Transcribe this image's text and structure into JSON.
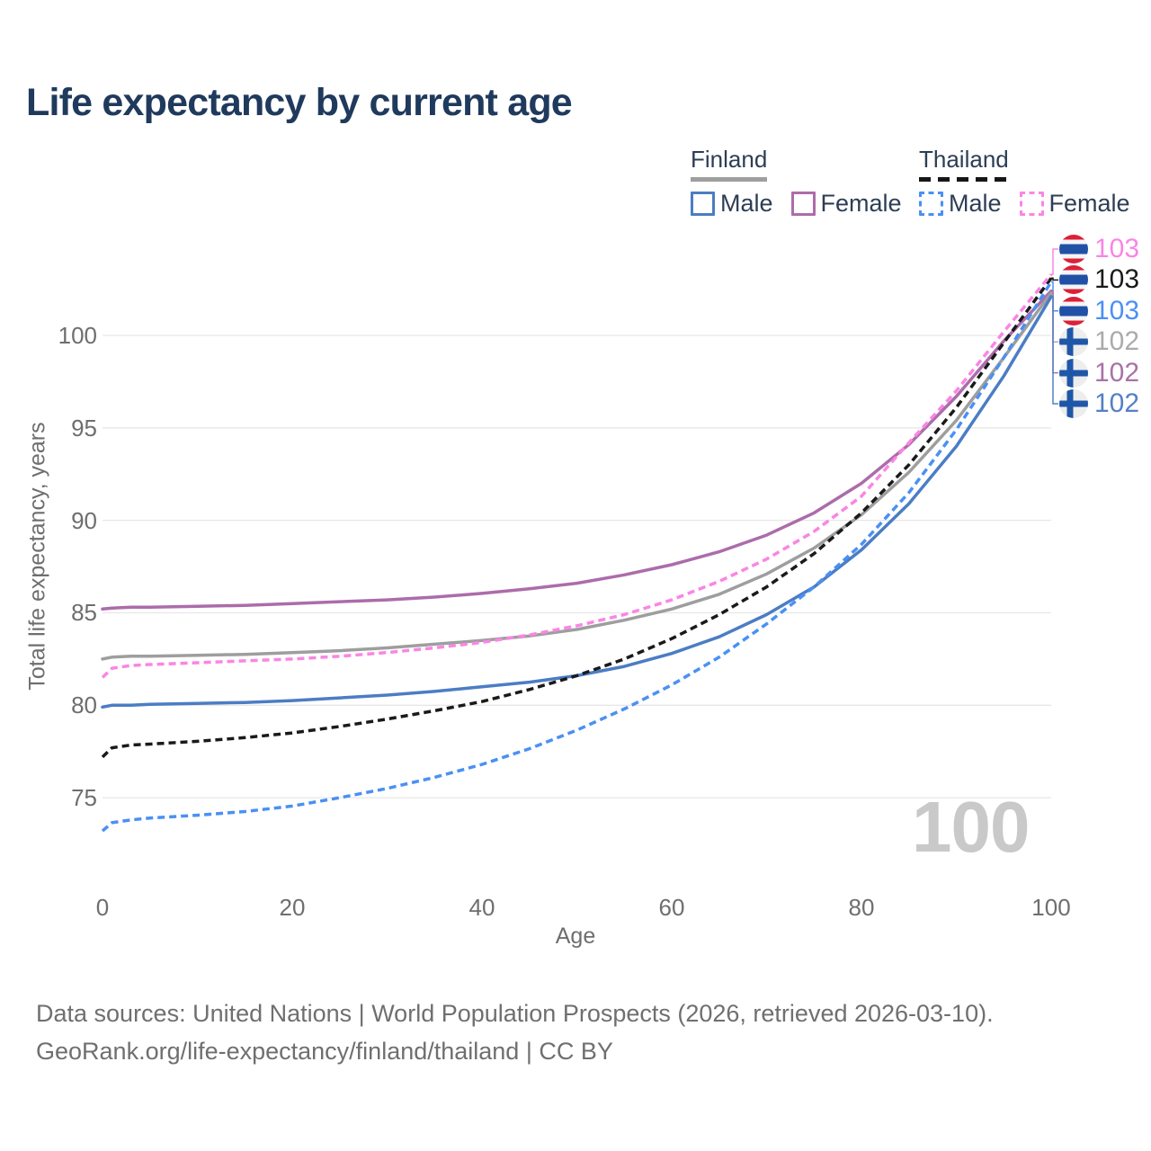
{
  "title": "Life expectancy by current age",
  "watermark": "100",
  "legend": {
    "groups": [
      {
        "country": "Finland",
        "line_style": "solid",
        "line_color": "#9e9e9e",
        "items": [
          {
            "label": "Male",
            "color": "#4b7dc4",
            "dashed": false
          },
          {
            "label": "Female",
            "color": "#ac6cab",
            "dashed": false
          }
        ]
      },
      {
        "country": "Thailand",
        "line_style": "dashed",
        "line_color": "#161616",
        "items": [
          {
            "label": "Male",
            "color": "#4a90f4",
            "dashed": true
          },
          {
            "label": "Female",
            "color": "#fa85e4",
            "dashed": true
          }
        ]
      }
    ]
  },
  "chart_data": {
    "type": "line",
    "title": "Life expectancy by current age",
    "xlabel": "Age",
    "ylabel": "Total life expectancy, years",
    "x_ticks": [
      0,
      20,
      40,
      60,
      80,
      100
    ],
    "y_ticks": [
      75,
      80,
      85,
      90,
      95,
      100
    ],
    "xlim": [
      0,
      100
    ],
    "ylim": [
      73,
      103.5
    ],
    "grid": "horizontal-only",
    "legend_position": "top-right",
    "series": [
      {
        "id": "thailand-female",
        "name": "Thailand Female",
        "country": "Thailand",
        "flag": "thailand",
        "style": "dashed",
        "color": "#fa85e4",
        "label_color": "#fa85e4",
        "end_label": "103",
        "points": [
          [
            0,
            81.5
          ],
          [
            1,
            82.0
          ],
          [
            3,
            82.15
          ],
          [
            5,
            82.2
          ],
          [
            10,
            82.3
          ],
          [
            15,
            82.4
          ],
          [
            20,
            82.5
          ],
          [
            25,
            82.65
          ],
          [
            30,
            82.85
          ],
          [
            35,
            83.1
          ],
          [
            40,
            83.4
          ],
          [
            45,
            83.8
          ],
          [
            50,
            84.3
          ],
          [
            55,
            84.9
          ],
          [
            60,
            85.7
          ],
          [
            65,
            86.7
          ],
          [
            70,
            87.9
          ],
          [
            75,
            89.4
          ],
          [
            80,
            91.3
          ],
          [
            85,
            94.2
          ],
          [
            90,
            97.0
          ],
          [
            95,
            100.2
          ],
          [
            100,
            103.3
          ]
        ]
      },
      {
        "id": "thailand-total",
        "name": "Thailand",
        "country": "Thailand",
        "flag": "thailand",
        "style": "dashed",
        "color": "#1a1a1a",
        "label_color": "#1a1a1a",
        "end_label": "103",
        "points": [
          [
            0,
            77.2
          ],
          [
            1,
            77.7
          ],
          [
            3,
            77.85
          ],
          [
            5,
            77.9
          ],
          [
            10,
            78.05
          ],
          [
            15,
            78.25
          ],
          [
            20,
            78.5
          ],
          [
            25,
            78.85
          ],
          [
            30,
            79.25
          ],
          [
            35,
            79.7
          ],
          [
            40,
            80.2
          ],
          [
            45,
            80.85
          ],
          [
            50,
            81.6
          ],
          [
            55,
            82.5
          ],
          [
            60,
            83.6
          ],
          [
            65,
            84.9
          ],
          [
            70,
            86.4
          ],
          [
            75,
            88.2
          ],
          [
            80,
            90.4
          ],
          [
            85,
            93.0
          ],
          [
            90,
            96.1
          ],
          [
            95,
            99.6
          ],
          [
            100,
            103.1
          ]
        ]
      },
      {
        "id": "thailand-male",
        "name": "Thailand Male",
        "country": "Thailand",
        "flag": "thailand",
        "style": "dashed",
        "color": "#4a90f4",
        "label_color": "#4a90f4",
        "end_label": "103",
        "points": [
          [
            0,
            73.2
          ],
          [
            1,
            73.65
          ],
          [
            3,
            73.8
          ],
          [
            5,
            73.9
          ],
          [
            10,
            74.05
          ],
          [
            15,
            74.25
          ],
          [
            20,
            74.55
          ],
          [
            25,
            75.0
          ],
          [
            30,
            75.5
          ],
          [
            35,
            76.1
          ],
          [
            40,
            76.8
          ],
          [
            45,
            77.65
          ],
          [
            50,
            78.65
          ],
          [
            55,
            79.8
          ],
          [
            60,
            81.1
          ],
          [
            65,
            82.6
          ],
          [
            70,
            84.4
          ],
          [
            75,
            86.4
          ],
          [
            80,
            88.7
          ],
          [
            85,
            91.5
          ],
          [
            90,
            94.9
          ],
          [
            95,
            98.8
          ],
          [
            100,
            102.9
          ]
        ]
      },
      {
        "id": "finland-total",
        "name": "Finland",
        "country": "Finland",
        "flag": "finland",
        "style": "solid",
        "color": "#9e9e9e",
        "label_color": "#ababab",
        "end_label": "102",
        "points": [
          [
            0,
            82.5
          ],
          [
            1,
            82.6
          ],
          [
            3,
            82.65
          ],
          [
            5,
            82.65
          ],
          [
            10,
            82.7
          ],
          [
            15,
            82.75
          ],
          [
            20,
            82.85
          ],
          [
            25,
            82.95
          ],
          [
            30,
            83.1
          ],
          [
            35,
            83.3
          ],
          [
            40,
            83.5
          ],
          [
            45,
            83.75
          ],
          [
            50,
            84.1
          ],
          [
            55,
            84.6
          ],
          [
            60,
            85.2
          ],
          [
            65,
            86.0
          ],
          [
            70,
            87.1
          ],
          [
            75,
            88.5
          ],
          [
            80,
            90.3
          ],
          [
            85,
            92.6
          ],
          [
            90,
            95.4
          ],
          [
            95,
            98.8
          ],
          [
            100,
            102.3
          ]
        ]
      },
      {
        "id": "finland-female",
        "name": "Finland Female",
        "country": "Finland",
        "flag": "finland",
        "style": "solid",
        "color": "#ac6cab",
        "label_color": "#a872a8",
        "end_label": "102",
        "points": [
          [
            0,
            85.2
          ],
          [
            1,
            85.25
          ],
          [
            3,
            85.3
          ],
          [
            5,
            85.3
          ],
          [
            10,
            85.35
          ],
          [
            15,
            85.4
          ],
          [
            20,
            85.5
          ],
          [
            25,
            85.6
          ],
          [
            30,
            85.7
          ],
          [
            35,
            85.85
          ],
          [
            40,
            86.05
          ],
          [
            45,
            86.3
          ],
          [
            50,
            86.6
          ],
          [
            55,
            87.05
          ],
          [
            60,
            87.6
          ],
          [
            65,
            88.3
          ],
          [
            70,
            89.2
          ],
          [
            75,
            90.4
          ],
          [
            80,
            92.0
          ],
          [
            85,
            94.1
          ],
          [
            90,
            96.7
          ],
          [
            95,
            99.7
          ],
          [
            100,
            102.4
          ]
        ]
      },
      {
        "id": "finland-male",
        "name": "Finland Male",
        "country": "Finland",
        "flag": "finland",
        "style": "solid",
        "color": "#4b7dc4",
        "label_color": "#5580c5",
        "end_label": "102",
        "points": [
          [
            0,
            79.9
          ],
          [
            1,
            80.0
          ],
          [
            3,
            80.0
          ],
          [
            5,
            80.05
          ],
          [
            10,
            80.1
          ],
          [
            15,
            80.15
          ],
          [
            20,
            80.25
          ],
          [
            25,
            80.4
          ],
          [
            30,
            80.55
          ],
          [
            35,
            80.75
          ],
          [
            40,
            81.0
          ],
          [
            45,
            81.25
          ],
          [
            50,
            81.6
          ],
          [
            55,
            82.1
          ],
          [
            60,
            82.8
          ],
          [
            65,
            83.7
          ],
          [
            70,
            84.9
          ],
          [
            75,
            86.4
          ],
          [
            80,
            88.4
          ],
          [
            85,
            90.9
          ],
          [
            90,
            94.0
          ],
          [
            95,
            97.8
          ],
          [
            100,
            102.1
          ]
        ]
      }
    ]
  },
  "footer": {
    "line1": "Data sources: United Nations | World Population Prospects (2026, retrieved 2026-03-10).",
    "line2": "GeoRank.org/life-expectancy/finland/thailand | CC BY"
  }
}
